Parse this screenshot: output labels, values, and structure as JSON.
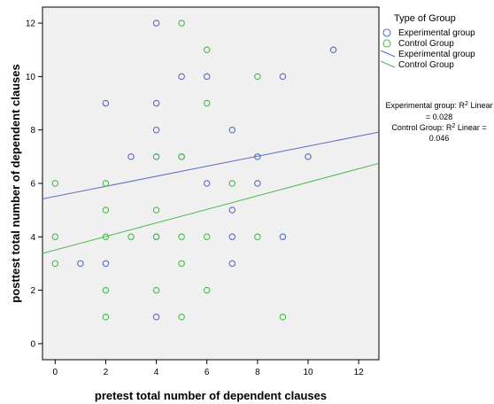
{
  "chart_data": {
    "type": "scatter",
    "xlabel": "pretest total number of dependent clauses",
    "ylabel": "posttest total number of dependent clauses",
    "xlim": [
      -0.5,
      12.8
    ],
    "ylim": [
      -0.6,
      12.6
    ],
    "xticks": [
      0,
      2,
      4,
      6,
      8,
      10,
      12
    ],
    "yticks": [
      0,
      2,
      4,
      6,
      8,
      10,
      12
    ],
    "grid": false,
    "legend": {
      "title": "Type of Group",
      "position": "right",
      "entries": [
        {
          "label": "Experimental group",
          "kind": "marker",
          "color": "#5a6bc4"
        },
        {
          "label": "Control Group",
          "kind": "marker",
          "color": "#4db84d"
        },
        {
          "label": "Experimental group",
          "kind": "line",
          "color": "#5a6bc4"
        },
        {
          "label": "Control Group",
          "kind": "line",
          "color": "#4db84d"
        }
      ]
    },
    "annotations": [
      {
        "line1": "Experimental group: R",
        "sup": "2",
        "line1_tail": " Linear",
        "line2": "= 0.028"
      },
      {
        "line1": "Control Group: R",
        "sup": "2",
        "line1_tail": " Linear =",
        "line2": "0.046"
      }
    ],
    "colors": {
      "experimental": "#5a6bc4",
      "control": "#4db84d",
      "plot_bg": "#f0f0f0"
    },
    "series": [
      {
        "name": "Experimental group",
        "points": [
          [
            4,
            12
          ],
          [
            5,
            10
          ],
          [
            6,
            10
          ],
          [
            9,
            10
          ],
          [
            11,
            11
          ],
          [
            2,
            9
          ],
          [
            4,
            9
          ],
          [
            4,
            8
          ],
          [
            7,
            8
          ],
          [
            3,
            7
          ],
          [
            4,
            7
          ],
          [
            5,
            7
          ],
          [
            8,
            7
          ],
          [
            10,
            7
          ],
          [
            6,
            6
          ],
          [
            8,
            6
          ],
          [
            7,
            5
          ],
          [
            4,
            4
          ],
          [
            7,
            4
          ],
          [
            9,
            4
          ],
          [
            1,
            3
          ],
          [
            2,
            3
          ],
          [
            7,
            3
          ],
          [
            4,
            1
          ]
        ],
        "fit": {
          "x": [
            -0.5,
            12.8
          ],
          "y": [
            5.42,
            7.92
          ]
        }
      },
      {
        "name": "Control Group",
        "points": [
          [
            5,
            12
          ],
          [
            6,
            11
          ],
          [
            8,
            10
          ],
          [
            6,
            9
          ],
          [
            4,
            7
          ],
          [
            5,
            7
          ],
          [
            0,
            6
          ],
          [
            2,
            6
          ],
          [
            7,
            6
          ],
          [
            2,
            5
          ],
          [
            4,
            5
          ],
          [
            0,
            4
          ],
          [
            2,
            4
          ],
          [
            3,
            4
          ],
          [
            4,
            4
          ],
          [
            5,
            4
          ],
          [
            6,
            4
          ],
          [
            8,
            4
          ],
          [
            0,
            3
          ],
          [
            5,
            3
          ],
          [
            2,
            2
          ],
          [
            4,
            2
          ],
          [
            6,
            2
          ],
          [
            2,
            1
          ],
          [
            5,
            1
          ],
          [
            9,
            1
          ]
        ],
        "fit": {
          "x": [
            -0.5,
            12.8
          ],
          "y": [
            3.38,
            6.75
          ]
        }
      }
    ]
  }
}
